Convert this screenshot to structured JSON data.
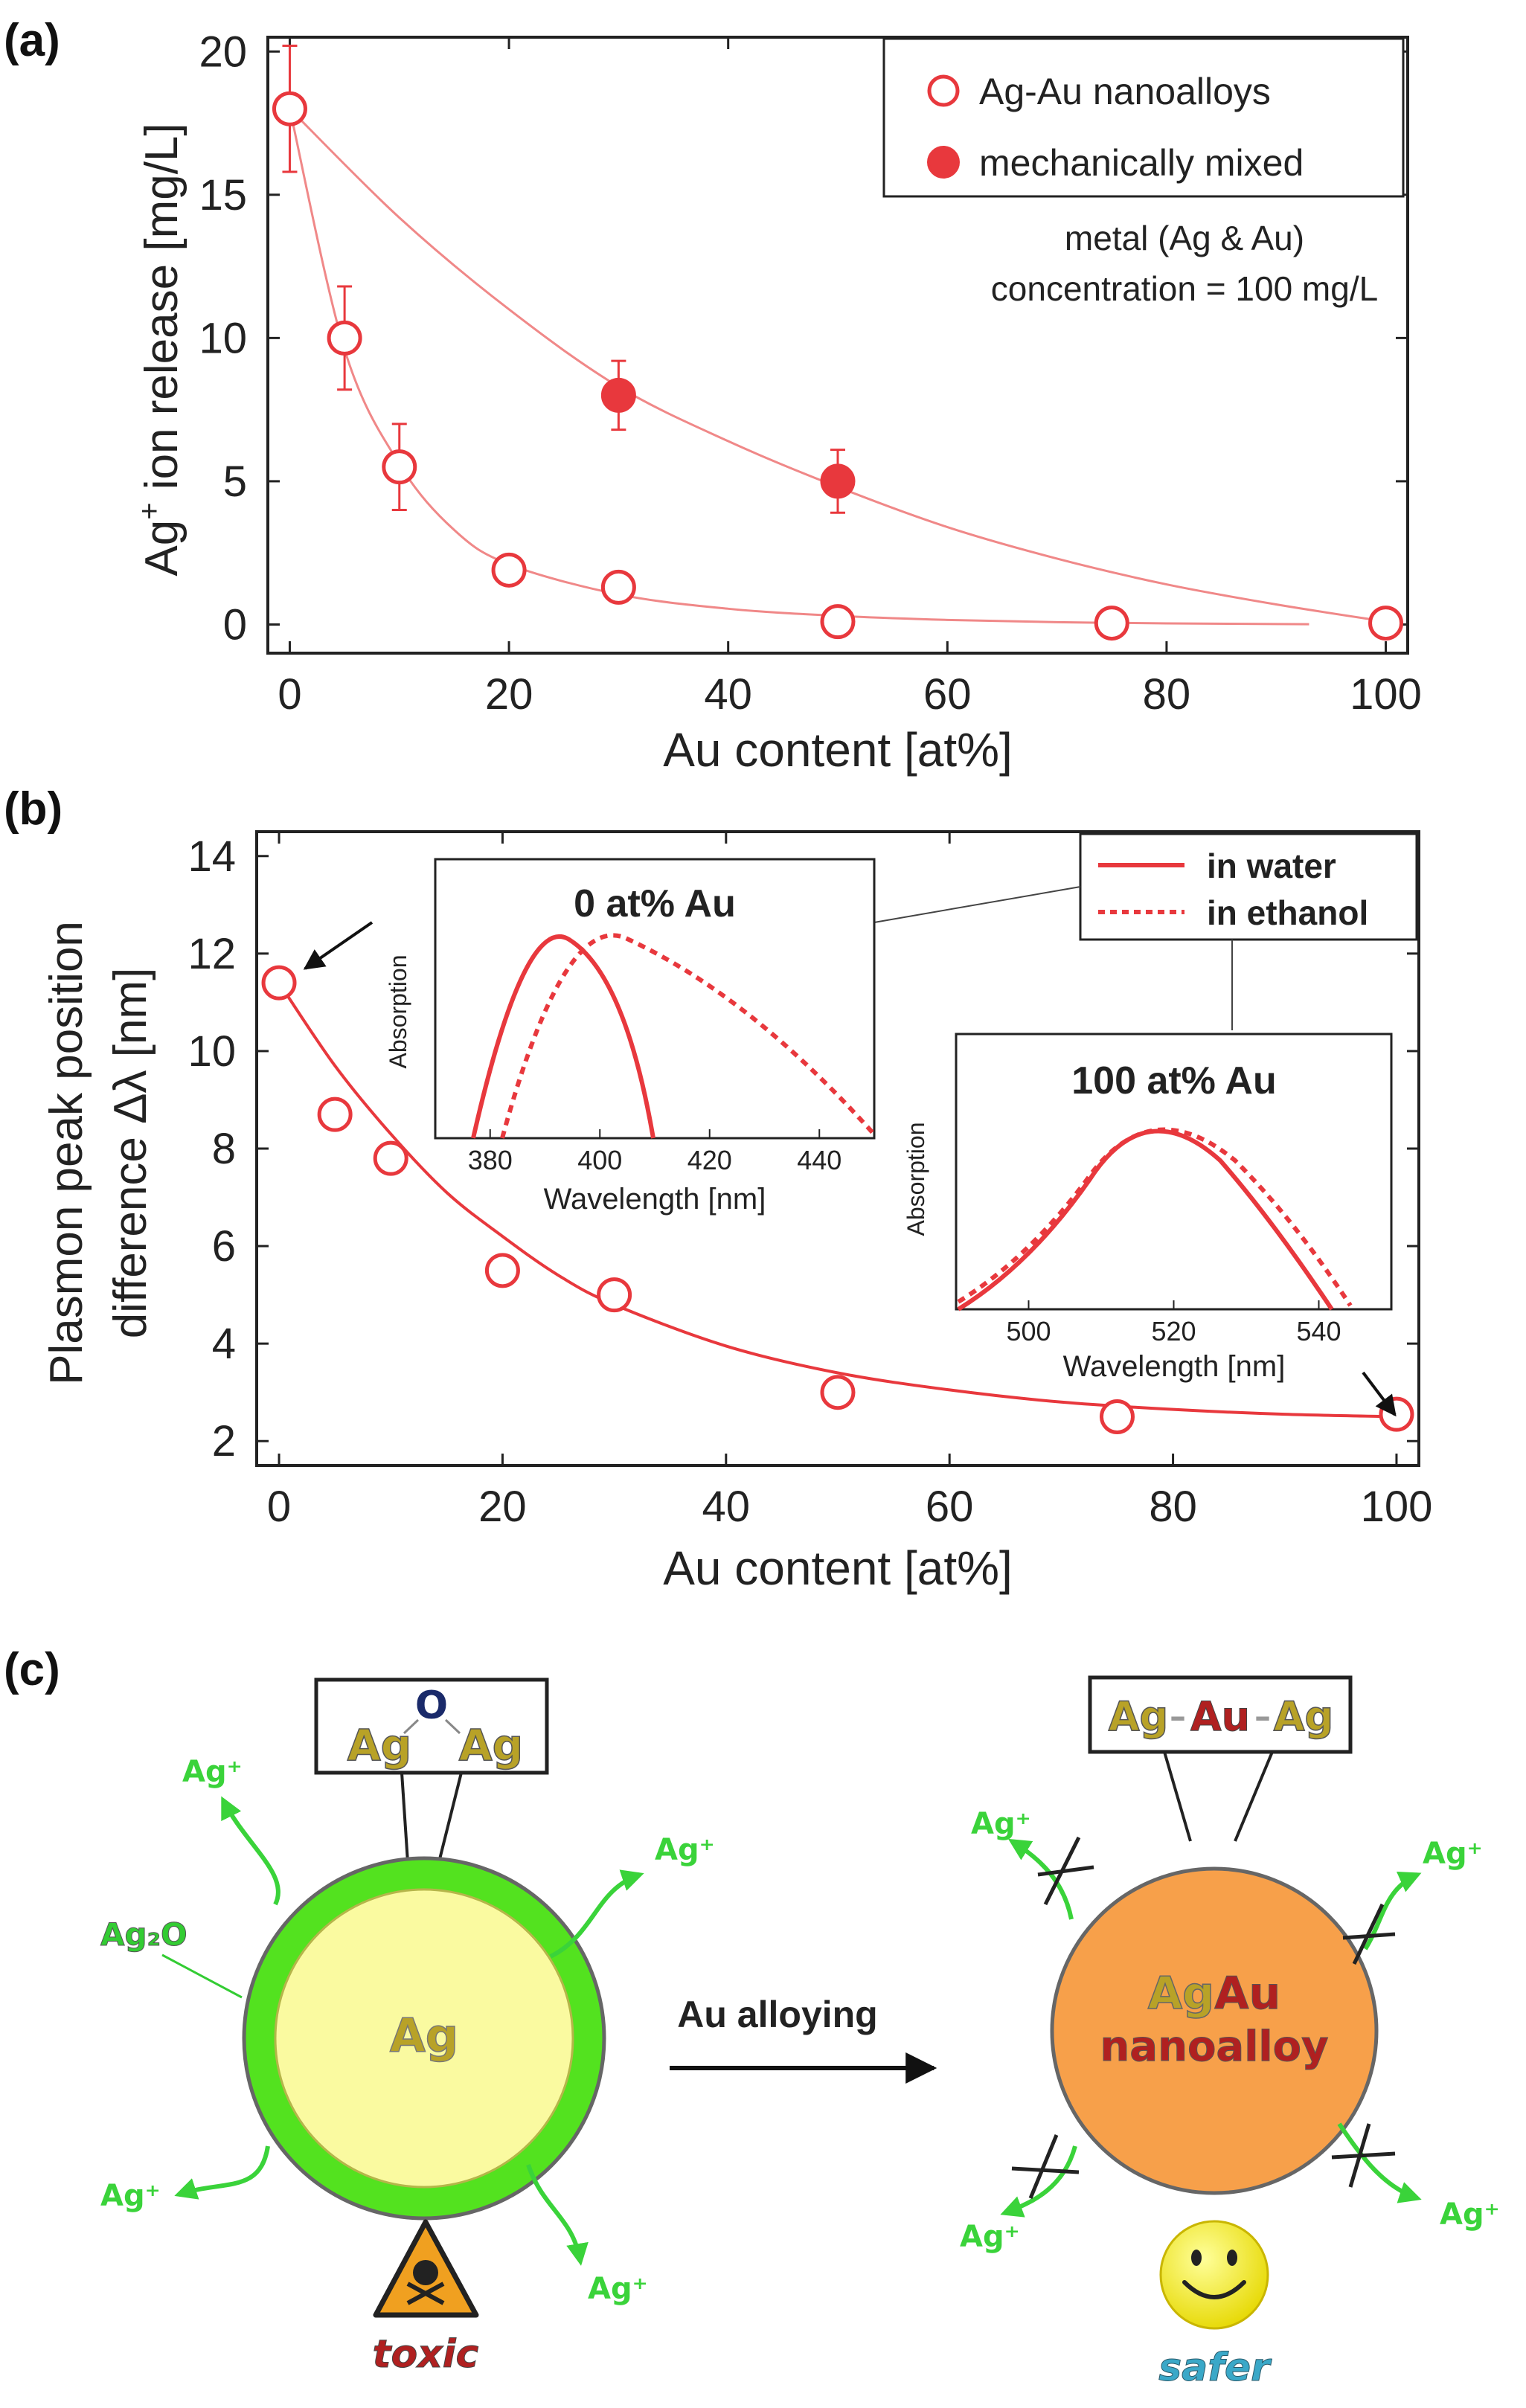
{
  "panel_a": {
    "label": "(a)",
    "legend": {
      "open": "Ag-Au nanoalloys",
      "filled": "mechanically mixed"
    },
    "annotation_line1": "metal (Ag & Au)",
    "annotation_line2": "concentration = 100 mg/L",
    "y_label_main": "Ag",
    "y_label_sup": "+",
    "y_label_rest": " ion release [mg/L]"
  },
  "panel_b": {
    "label": "(b)",
    "legend": {
      "solid": "in water",
      "dotted": "in ethanol"
    },
    "y_label_line1": "Plasmon peak position",
    "y_label_line2": "difference Δλ [nm]",
    "inset1": {
      "title": "0 at% Au",
      "ylabel": "Absorption",
      "xlabel": "Wavelength [nm]",
      "ticks": [
        "380",
        "400",
        "420",
        "440"
      ]
    },
    "inset2": {
      "title": "100 at% Au",
      "ylabel": "Absorption",
      "xlabel": "Wavelength [nm]",
      "ticks": [
        "500",
        "520",
        "540"
      ]
    }
  },
  "panel_c": {
    "label": "(c)",
    "left_box": {
      "atom1": "Ag",
      "atom_o": "O",
      "atom2": "Ag"
    },
    "ag2o_label": "Ag₂O",
    "core_label": "Ag",
    "ion_label": "Ag⁺",
    "arrow_label": "Au alloying",
    "right_box": {
      "ag1": "Ag",
      "sep1": "–",
      "au": "Au",
      "sep2": "–",
      "ag2": "Ag"
    },
    "alloy_ag": "Ag",
    "alloy_au": "Au",
    "alloy_word": "nanoalloy",
    "toxic_label": "toxic",
    "safer_label": "safer",
    "colors": {
      "red": "#e8383d",
      "green": "#3ad33a",
      "orange": "#f7a04a",
      "yellow": "#fafaa0",
      "olive": "#b8a227",
      "darkred": "#b02020"
    }
  },
  "chart_data": [
    {
      "type": "scatter",
      "title": "",
      "xlabel": "Au content [at%]",
      "ylabel": "Ag+ ion release [mg/L]",
      "xlim": [
        -2,
        102
      ],
      "ylim": [
        -1,
        20.5
      ],
      "xticks": [
        0,
        20,
        40,
        60,
        80,
        100
      ],
      "yticks": [
        0,
        5,
        10,
        15,
        20
      ],
      "series": [
        {
          "name": "Ag-Au nanoalloys",
          "marker": "open",
          "x": [
            0,
            5,
            10,
            20,
            30,
            50,
            75,
            100
          ],
          "y": [
            18,
            10,
            5.5,
            1.9,
            1.3,
            0.1,
            0.05,
            0.05
          ],
          "err": [
            2.2,
            1.8,
            1.5,
            0,
            0,
            0,
            0,
            0
          ]
        },
        {
          "name": "mechanically mixed",
          "marker": "filled",
          "x": [
            30,
            50
          ],
          "y": [
            8,
            5
          ],
          "err": [
            1.2,
            1.1
          ]
        }
      ],
      "fits": [
        {
          "name": "nanoalloy fit",
          "x": [
            0,
            5,
            10,
            15,
            20,
            30,
            40,
            50,
            60,
            70,
            80,
            93
          ],
          "y": [
            18,
            9.6,
            5.6,
            3.3,
            2.1,
            1.05,
            0.55,
            0.3,
            0.16,
            0.08,
            0.04,
            0.01
          ]
        },
        {
          "name": "mixed fit",
          "x": [
            0,
            10,
            20,
            30,
            40,
            50,
            60,
            70,
            80,
            90,
            100
          ],
          "y": [
            18,
            14.2,
            11,
            8.3,
            6.4,
            4.8,
            3.4,
            2.3,
            1.4,
            0.7,
            0.1
          ]
        }
      ]
    },
    {
      "type": "scatter",
      "title": "",
      "xlabel": "Au content [at%]",
      "ylabel": "Plasmon peak position difference Δλ [nm]",
      "xlim": [
        -2,
        102
      ],
      "ylim": [
        1.5,
        14.5
      ],
      "xticks": [
        0,
        20,
        40,
        60,
        80,
        100
      ],
      "yticks": [
        2,
        4,
        6,
        8,
        10,
        12,
        14
      ],
      "series": [
        {
          "name": "Δλ",
          "marker": "open",
          "x": [
            0,
            5,
            10,
            20,
            30,
            50,
            75,
            100
          ],
          "y": [
            11.4,
            8.7,
            7.8,
            5.5,
            5.0,
            3.0,
            2.5,
            2.55
          ]
        }
      ],
      "fits": [
        {
          "name": "fit",
          "x": [
            0,
            5,
            10,
            15,
            20,
            25,
            30,
            40,
            50,
            60,
            70,
            80,
            90,
            100
          ],
          "y": [
            11.4,
            9.7,
            8.3,
            7.1,
            6.2,
            5.4,
            4.8,
            3.95,
            3.4,
            3.05,
            2.8,
            2.65,
            2.55,
            2.5
          ]
        }
      ]
    }
  ]
}
